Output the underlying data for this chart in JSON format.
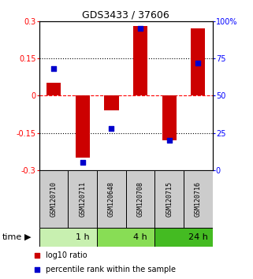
{
  "title": "GDS3433 / 37606",
  "samples": [
    "GSM120710",
    "GSM120711",
    "GSM120648",
    "GSM120708",
    "GSM120715",
    "GSM120716"
  ],
  "log10_ratio": [
    0.05,
    -0.25,
    -0.06,
    0.28,
    -0.18,
    0.27
  ],
  "percentile_rank": [
    68,
    5,
    28,
    95,
    20,
    72
  ],
  "groups": [
    {
      "label": "1 h",
      "start": 0,
      "end": 2,
      "color": "#c8f0b0"
    },
    {
      "label": "4 h",
      "start": 2,
      "end": 4,
      "color": "#88dd55"
    },
    {
      "label": "24 h",
      "start": 4,
      "end": 6,
      "color": "#44bb22"
    }
  ],
  "bar_color": "#cc0000",
  "dot_color": "#0000cc",
  "bar_width": 0.5,
  "dot_size": 18,
  "ylim_left": [
    -0.3,
    0.3
  ],
  "ylim_right": [
    0,
    100
  ],
  "yticks_left": [
    -0.3,
    -0.15,
    0.0,
    0.15,
    0.3
  ],
  "yticks_right": [
    0,
    25,
    50,
    75,
    100
  ],
  "ytick_labels_left": [
    "-0.3",
    "-0.15",
    "0",
    "0.15",
    "0.3"
  ],
  "ytick_labels_right": [
    "0",
    "25",
    "50",
    "75",
    "100%"
  ],
  "hline_dotted": [
    0.15,
    -0.15
  ],
  "hline_dashed_red": 0.0,
  "bg_color": "#ffffff",
  "sample_box_color": "#cccccc",
  "time_label": "time",
  "legend_bar_label": "log10 ratio",
  "legend_dot_label": "percentile rank within the sample"
}
